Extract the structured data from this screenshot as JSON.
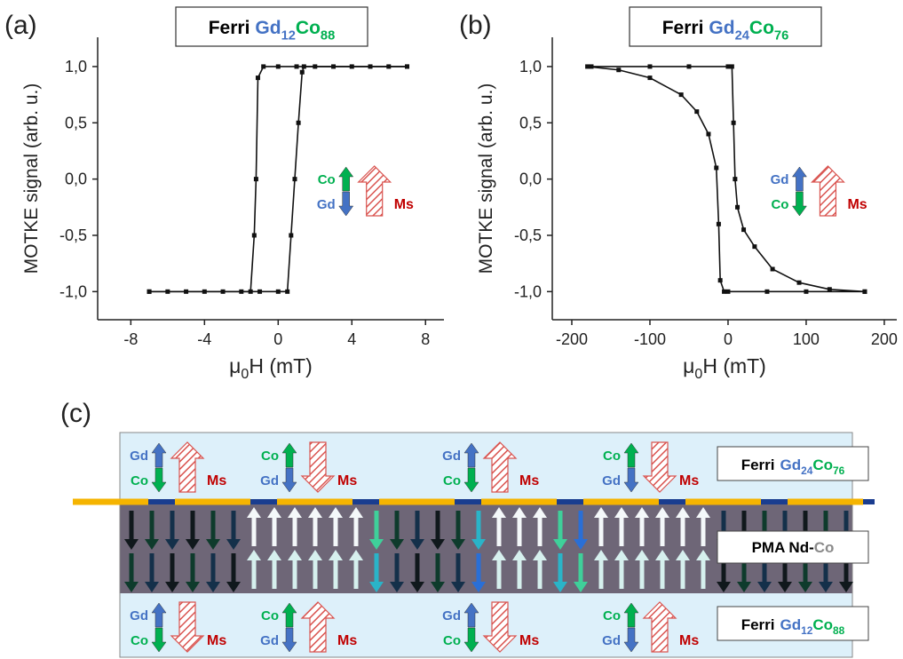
{
  "chart_data": [
    {
      "type": "line",
      "panel_label": "(a)",
      "title_parts": [
        "Ferri",
        "Gd",
        "12",
        "Co",
        "88"
      ],
      "ylabel": "MOTKE signal (arb. u.)",
      "xlabel_parts": [
        "μ",
        "0",
        "H (mT)"
      ],
      "xlim": [
        -9.8,
        9
      ],
      "ylim": [
        -1.25,
        1.26
      ],
      "xticks": [
        -8,
        -4,
        0,
        4,
        8
      ],
      "yticks": [
        {
          "value": -1,
          "label": "-1,0"
        },
        {
          "value": -0.5,
          "label": "-0,5"
        },
        {
          "value": 0,
          "label": "0,0"
        },
        {
          "value": 0.5,
          "label": "0,5"
        },
        {
          "value": 1,
          "label": "1,0"
        }
      ],
      "series": [
        {
          "color": "#111111",
          "x": [
            -7,
            -5,
            -3,
            -1,
            0,
            0.5,
            0.7,
            0.9,
            1.1,
            1.3,
            1.4,
            2,
            4,
            6,
            7
          ],
          "values": [
            -1,
            -1,
            -1,
            -1,
            -1,
            -1,
            -0.5,
            0,
            0.5,
            0.95,
            1,
            1,
            1,
            1,
            1
          ]
        },
        {
          "color": "#111111",
          "x": [
            7,
            5,
            3,
            1,
            0,
            -0.8,
            -1.1,
            -1.2,
            -1.3,
            -1.5,
            -2,
            -4,
            -6,
            -7
          ],
          "values": [
            1,
            1,
            1,
            1,
            1,
            1,
            0.9,
            0,
            -0.5,
            -1,
            -1,
            -1,
            -1,
            -1
          ]
        }
      ],
      "inset": {
        "labels": [
          "Co",
          "Gd"
        ],
        "colors": [
          "#00b050",
          "#4472c4"
        ],
        "ms": "Ms",
        "direction": "up"
      }
    },
    {
      "type": "line",
      "panel_label": "(b)",
      "title_parts": [
        "Ferri",
        "Gd",
        "24",
        "Co",
        "76"
      ],
      "ylabel": "MOTKE signal (arb. u.)",
      "xlabel_parts": [
        "μ",
        "0",
        "H (mT)"
      ],
      "xlim": [
        -225,
        216
      ],
      "ylim": [
        -1.25,
        1.26
      ],
      "xticks": [
        -200,
        -100,
        0,
        100,
        200
      ],
      "yticks": [
        {
          "value": -1,
          "label": "-1,0"
        },
        {
          "value": -0.5,
          "label": "-0,5"
        },
        {
          "value": 0,
          "label": "0,0"
        },
        {
          "value": 0.5,
          "label": "0,5"
        },
        {
          "value": 1,
          "label": "1,0"
        }
      ],
      "series": [
        {
          "color": "#111111",
          "x": [
            -175,
            -100,
            -50,
            0,
            5,
            7,
            9,
            12,
            20,
            34,
            57,
            91,
            130,
            175
          ],
          "values": [
            1,
            1,
            1,
            1,
            1,
            0.5,
            0,
            -0.25,
            -0.45,
            -0.6,
            -0.8,
            -0.92,
            -0.98,
            -1
          ]
        },
        {
          "color": "#111111",
          "x": [
            175,
            100,
            50,
            0,
            -5,
            -10,
            -12,
            -15,
            -25,
            -40,
            -60,
            -100,
            -140,
            -180
          ],
          "values": [
            -1,
            -1,
            -1,
            -1,
            -1,
            -0.9,
            -0.4,
            0.1,
            0.4,
            0.6,
            0.75,
            0.9,
            0.97,
            1
          ]
        }
      ],
      "inset": {
        "labels": [
          "Gd",
          "Co"
        ],
        "colors": [
          "#4472c4",
          "#00b050"
        ],
        "ms": "Ms",
        "direction": "up"
      }
    }
  ],
  "diagram": {
    "panel_label": "(c)",
    "top_label": [
      "Ferri",
      "Gd",
      "24",
      "Co",
      "76"
    ],
    "middle_label": [
      "PMA Nd-",
      "Co"
    ],
    "bottom_label": [
      "Ferri",
      "Gd",
      "12",
      "Co",
      "88"
    ],
    "top_groups": [
      {
        "labels": [
          "Gd",
          "Co"
        ],
        "colors": [
          "#4472c4",
          "#00b050"
        ],
        "ms": "Ms",
        "direction": "up"
      },
      {
        "labels": [
          "Co",
          "Gd"
        ],
        "colors": [
          "#00b050",
          "#4472c4"
        ],
        "ms": "Ms",
        "direction": "down"
      },
      {
        "labels": [
          "Gd",
          "Co"
        ],
        "colors": [
          "#4472c4",
          "#00b050"
        ],
        "ms": "Ms",
        "direction": "up"
      },
      {
        "labels": [
          "Co",
          "Gd"
        ],
        "colors": [
          "#00b050",
          "#4472c4"
        ],
        "ms": "Ms",
        "direction": "down"
      }
    ],
    "bottom_groups": [
      {
        "labels": [
          "Gd",
          "Co"
        ],
        "colors": [
          "#4472c4",
          "#00b050"
        ],
        "ms": "Ms",
        "direction": "down"
      },
      {
        "labels": [
          "Co",
          "Gd"
        ],
        "colors": [
          "#00b050",
          "#4472c4"
        ],
        "ms": "Ms",
        "direction": "up"
      },
      {
        "labels": [
          "Gd",
          "Co"
        ],
        "colors": [
          "#4472c4",
          "#00b050"
        ],
        "ms": "Ms",
        "direction": "down"
      },
      {
        "labels": [
          "Co",
          "Gd"
        ],
        "colors": [
          "#00b050",
          "#4472c4"
        ],
        "ms": "Ms",
        "direction": "up"
      }
    ]
  }
}
